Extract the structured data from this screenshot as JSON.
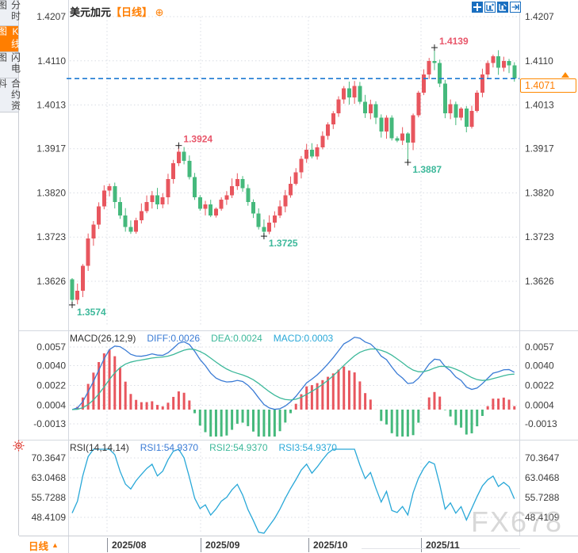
{
  "header": {
    "symbol": "美元加元",
    "period": "【日线】",
    "expand": "⊕"
  },
  "sidebar": {
    "tabs": [
      {
        "label": "分时图",
        "active": false
      },
      {
        "label": "K线图",
        "active": true
      },
      {
        "label": "闪电图",
        "active": false
      },
      {
        "label": "合约资料",
        "active": false
      }
    ]
  },
  "toolbar": {
    "icons": [
      {
        "name": "pan-crosshair",
        "active": true
      },
      {
        "name": "zoom-horizontal",
        "active": false
      },
      {
        "name": "auto-scale",
        "active": true
      },
      {
        "name": "jump-to-latest",
        "active": false
      }
    ]
  },
  "main_chart": {
    "y_labels": [
      "1.4207",
      "1.4110",
      "1.4013",
      "1.3917",
      "1.3820",
      "1.3723",
      "1.3626"
    ],
    "current_price": "1.4071",
    "annotations": [
      {
        "index": 68,
        "type": "high",
        "text": "1.4139"
      },
      {
        "index": 20,
        "type": "high",
        "text": "1.3924"
      },
      {
        "index": 63,
        "type": "low",
        "text": "1.3887"
      },
      {
        "index": 36,
        "type": "low",
        "text": "1.3725"
      },
      {
        "index": 0,
        "type": "low",
        "text": "1.3574"
      }
    ]
  },
  "macd_panel": {
    "title": "MACD(26,12,9)",
    "diff_label": "DIFF:0.0026",
    "dea_label": "DEA:0.0024",
    "macd_label": "MACD:0.0003",
    "y_labels": [
      "0.0057",
      "0.0040",
      "0.0022",
      "0.0004",
      "-0.0013"
    ]
  },
  "rsi_panel": {
    "title": "RSI(14,14,14)",
    "rsi1_label": "RSI1:54.9370",
    "rsi2_label": "RSI2:54.9370",
    "rsi3_label": "RSI3:54.9370",
    "y_labels": [
      "70.3647",
      "63.0468",
      "55.7288",
      "48.4109"
    ]
  },
  "bottom_bar": {
    "period": "日线",
    "arrow": "▲",
    "dates": [
      "2025/08",
      "2025/09",
      "2025/10",
      "2025/11"
    ]
  },
  "watermark": "FX678",
  "colors": {
    "up": "#e8565e",
    "down": "#45b97c",
    "accent": "#ff7e00",
    "diff_blue": "#3a7bd5",
    "dea_teal": "#3cb89a",
    "macd_cyan": "#29a8d8",
    "dashed": "#1d7ad2",
    "grid": "#d9dde4",
    "axis_text": "#3c3c3c",
    "annotation_high": "#e8566a",
    "annotation_low": "#3cb89a"
  },
  "chart_data": {
    "type": "candlestick",
    "symbol": "美元加元 (USD/CAD)",
    "interval": "日线 (daily)",
    "visible_months": [
      "2025/08",
      "2025/09",
      "2025/10",
      "2025/11"
    ],
    "y_axis": [
      1.4207,
      1.411,
      1.4013,
      1.3917,
      1.382,
      1.3723,
      1.3626
    ],
    "open_first": 1.363,
    "closes": [
      1.3585,
      1.3605,
      1.366,
      1.372,
      1.375,
      1.379,
      1.3825,
      1.3835,
      1.38,
      1.377,
      1.3745,
      1.3735,
      1.376,
      1.378,
      1.38,
      1.3815,
      1.3795,
      1.381,
      1.385,
      1.3885,
      1.391,
      1.389,
      1.3855,
      1.381,
      1.3785,
      1.3795,
      1.377,
      1.3785,
      1.3805,
      1.3815,
      1.3835,
      1.385,
      1.383,
      1.38,
      1.3775,
      1.3745,
      1.3735,
      1.3755,
      1.377,
      1.379,
      1.3815,
      1.384,
      1.3865,
      1.3895,
      1.3915,
      1.39,
      1.392,
      1.3945,
      1.397,
      1.3995,
      1.4025,
      1.405,
      1.403,
      1.4055,
      1.402,
      1.3995,
      1.4015,
      1.3985,
      1.3955,
      1.3985,
      1.394,
      1.3935,
      1.395,
      1.393,
      1.399,
      1.404,
      1.408,
      1.411,
      1.4105,
      1.406,
      1.3995,
      1.4015,
      1.3985,
      1.4005,
      1.3965,
      1.4,
      1.404,
      1.408,
      1.4105,
      1.412,
      1.4095,
      1.411,
      1.41,
      1.4071
    ],
    "extremes": {
      "0": {
        "low": 1.3574
      },
      "20": {
        "high": 1.3924
      },
      "36": {
        "low": 1.3725
      },
      "63": {
        "low": 1.3887
      },
      "68": {
        "high": 1.4139
      }
    },
    "last_price": 1.4071,
    "indicators": {
      "macd": {
        "type": "line+histogram",
        "params": [
          26,
          12,
          9
        ],
        "diff": 0.0026,
        "dea": 0.0024,
        "macd": 0.0003,
        "y_axis": [
          0.0057,
          0.004,
          0.0022,
          0.0004,
          -0.0013
        ]
      },
      "rsi": {
        "type": "line",
        "params": [
          14,
          14,
          14
        ],
        "rsi1": 54.937,
        "rsi2": 54.937,
        "rsi3": 54.937,
        "y_axis": [
          70.3647,
          63.0468,
          55.7288,
          48.4109
        ]
      }
    }
  }
}
